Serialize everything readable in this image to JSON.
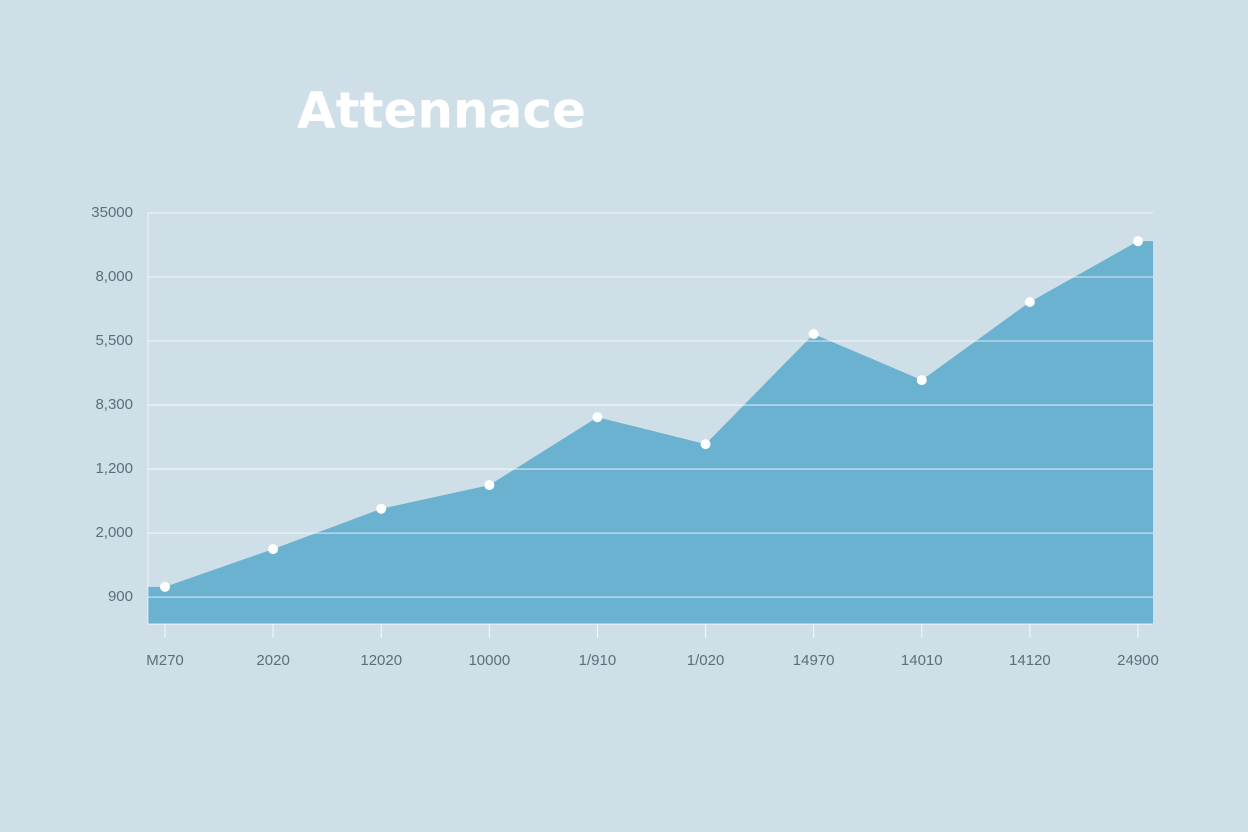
{
  "chart_data": {
    "type": "area",
    "title": "Attennace",
    "categories": [
      "M270",
      "2020",
      "12020",
      "10000",
      "1/910",
      "1/020",
      "14970",
      "14010",
      "14120",
      "24900"
    ],
    "values": [
      0.16,
      0.75,
      1.38,
      1.75,
      2.81,
      2.39,
      4.11,
      3.39,
      4.61,
      5.56
    ],
    "color": "#6bb1d0",
    "ylim": [
      -0.42,
      6
    ],
    "yticks": [
      {
        "value": 0,
        "label": "900"
      },
      {
        "value": 1,
        "label": "2,000"
      },
      {
        "value": 2,
        "label": "1,200"
      },
      {
        "value": 3,
        "label": "8,300"
      },
      {
        "value": 4,
        "label": "5,500"
      },
      {
        "value": 5,
        "label": "8,000"
      },
      {
        "value": 6,
        "label": "35000"
      }
    ],
    "grid": true
  }
}
